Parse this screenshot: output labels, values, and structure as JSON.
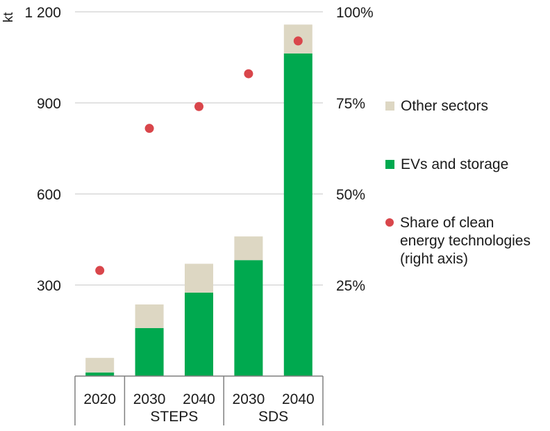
{
  "chart_data": {
    "type": "bar",
    "stacked": true,
    "ylabel": "kt",
    "y_left": {
      "ylim": [
        0,
        1200
      ],
      "ticks": [
        300,
        600,
        900,
        1200
      ],
      "tick_labels": [
        "300",
        "600",
        "900",
        "1 200"
      ]
    },
    "y_right": {
      "ylim": [
        0,
        100
      ],
      "ticks": [
        25,
        50,
        75,
        100
      ],
      "tick_labels": [
        "25%",
        "50%",
        "75%",
        "100%"
      ]
    },
    "categories": [
      "2020",
      "2030",
      "2040",
      "2030",
      "2040"
    ],
    "groups": [
      {
        "label": "",
        "span": [
          0,
          0
        ]
      },
      {
        "label": "STEPS",
        "span": [
          1,
          2
        ]
      },
      {
        "label": "SDS",
        "span": [
          3,
          4
        ]
      }
    ],
    "series": [
      {
        "name": "EVs and storage",
        "kind": "bar",
        "axis": "left",
        "color": "#00a94f",
        "values": [
          12,
          158,
          275,
          382,
          1063
        ]
      },
      {
        "name": "Other sectors",
        "kind": "bar",
        "axis": "left",
        "color": "#ddd7c3",
        "values": [
          48,
          78,
          95,
          78,
          95
        ]
      },
      {
        "name": "Share of clean energy technologies (right axis)",
        "kind": "scatter",
        "axis": "right",
        "color": "#d9464b",
        "values": [
          29,
          68,
          74,
          83,
          92
        ]
      }
    ],
    "legend": {
      "position": "right",
      "entries": [
        {
          "label": "Other sectors",
          "color": "#ddd7c3",
          "shape": "square"
        },
        {
          "label": "EVs and storage",
          "color": "#00a94f",
          "shape": "square"
        },
        {
          "label": "Share of clean\nenergy technologies\n(right axis)",
          "color": "#d9464b",
          "shape": "circle"
        }
      ]
    },
    "grid": "horizontal"
  }
}
